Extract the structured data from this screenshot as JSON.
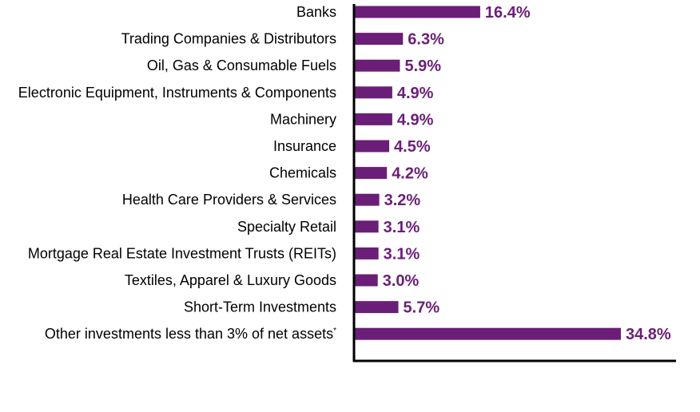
{
  "chart_data": {
    "type": "bar",
    "orientation": "horizontal",
    "title": "",
    "xlabel": "",
    "ylabel": "",
    "xlim": [
      0,
      34.8
    ],
    "grid": false,
    "legend": "none",
    "bar_color": "#6b1e77",
    "label_color": "#6b1e77",
    "categories": [
      "Banks",
      "Trading Companies & Distributors",
      "Oil, Gas & Consumable Fuels",
      "Electronic Equipment, Instruments & Components",
      "Machinery",
      "Insurance",
      "Chemicals",
      "Health Care Providers & Services",
      "Specialty Retail",
      "Mortgage Real Estate Investment Trusts (REITs)",
      "Textiles, Apparel & Luxury Goods",
      "Short-Term Investments",
      "Other investments less than 3% of net assets"
    ],
    "footnote_marks": [
      "",
      "",
      "",
      "",
      "",
      "",
      "",
      "",
      "",
      "",
      "",
      "",
      "*"
    ],
    "values": [
      16.4,
      6.3,
      5.9,
      4.9,
      4.9,
      4.5,
      4.2,
      3.2,
      3.1,
      3.1,
      3.0,
      5.7,
      34.8
    ],
    "value_labels": [
      "16.4%",
      "6.3%",
      "5.9%",
      "4.9%",
      "4.9%",
      "4.5%",
      "4.2%",
      "3.2%",
      "3.1%",
      "3.1%",
      "3.0%",
      "5.7%",
      "34.8%"
    ]
  }
}
